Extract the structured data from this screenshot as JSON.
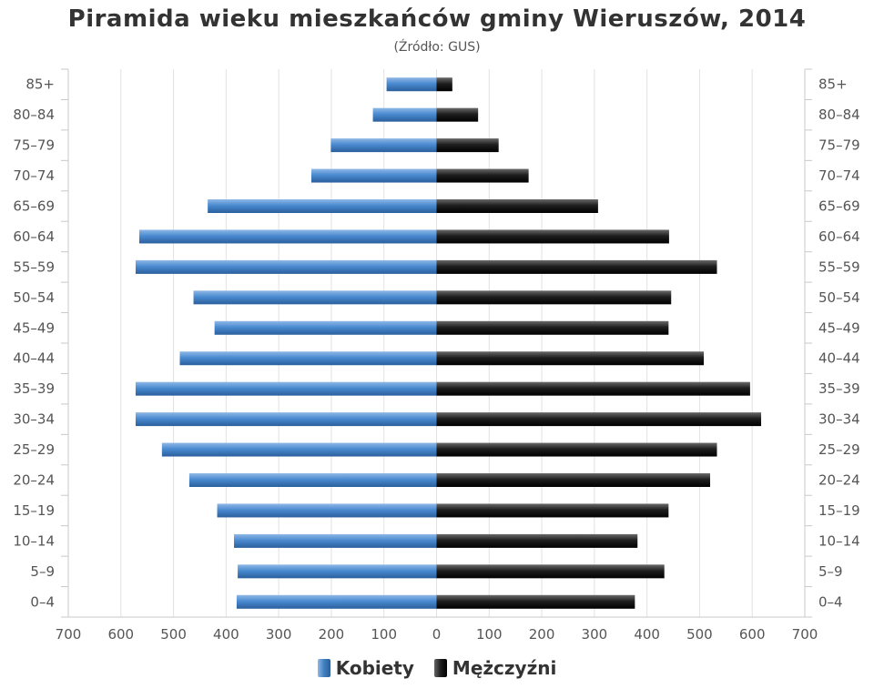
{
  "chart_data": {
    "type": "bar",
    "orientation": "horizontal-pyramid",
    "title": "Piramida wieku mieszkańców gminy Wieruszów, 2014",
    "subtitle": "(Źródło: GUS)",
    "categories": [
      "0–4",
      "5–9",
      "10–14",
      "15–19",
      "20–24",
      "25–29",
      "30–34",
      "35–39",
      "40–44",
      "45–49",
      "50–54",
      "55–59",
      "60–64",
      "65–69",
      "70–74",
      "75–79",
      "80–84",
      "85+"
    ],
    "series": [
      {
        "name": "Kobiety",
        "side": "left",
        "color": "#3f7fbf",
        "values": [
          380,
          378,
          385,
          417,
          470,
          522,
          572,
          572,
          488,
          422,
          462,
          572,
          565,
          435,
          238,
          201,
          121,
          95
        ]
      },
      {
        "name": "Mężczyźni",
        "side": "right",
        "color": "#222222",
        "values": [
          377,
          433,
          382,
          441,
          520,
          533,
          617,
          596,
          508,
          441,
          446,
          533,
          442,
          307,
          175,
          118,
          79,
          30
        ]
      }
    ],
    "xticks": [
      "700",
      "600",
      "500",
      "400",
      "300",
      "200",
      "100",
      "0",
      "100",
      "200",
      "300",
      "400",
      "500",
      "600",
      "700"
    ],
    "xlim": [
      -700,
      700
    ],
    "grid": true,
    "legend_position": "bottom-center"
  }
}
